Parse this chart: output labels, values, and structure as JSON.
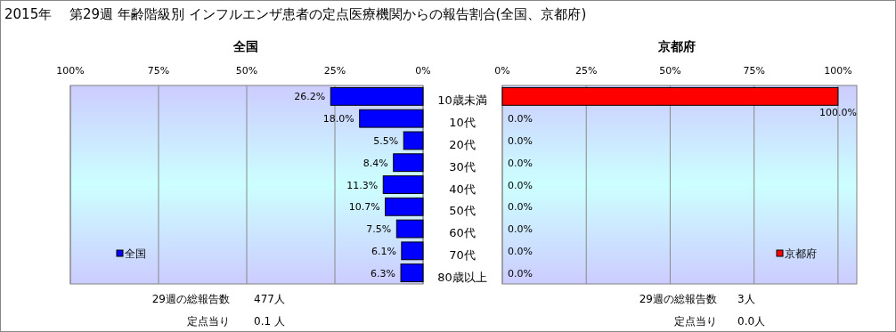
{
  "chart_data": [
    {
      "type": "bar",
      "orientation": "horizontal",
      "title": "2015年　 第29週 年齢階級別 インフルエンザ患者の定点医療機関からの報告割合(全国、京都府)",
      "subtitle": "全国",
      "categories": [
        "10歳未満",
        "10代",
        "20代",
        "30代",
        "40代",
        "50代",
        "60代",
        "70代",
        "80歳以上"
      ],
      "series": [
        {
          "name": "全国",
          "color": "#0000ff",
          "values": [
            26.2,
            18.0,
            5.5,
            8.4,
            11.3,
            10.7,
            7.5,
            6.1,
            6.3
          ],
          "value_labels": [
            "26.2%",
            "18.0%",
            "5.5%",
            "8.4%",
            "11.3%",
            "10.7%",
            "7.5%",
            "6.1%",
            "6.3%"
          ]
        }
      ],
      "xlim": [
        100,
        0
      ],
      "xticks": [
        {
          "value": 100,
          "label": "100%"
        },
        {
          "value": 75,
          "label": "75%"
        },
        {
          "value": 50,
          "label": "50%"
        },
        {
          "value": 25,
          "label": "25%"
        },
        {
          "value": 0,
          "label": "0%"
        }
      ],
      "grid": "x",
      "legend": "bottom left",
      "annotations": [
        "29週の総報告数",
        "477人",
        "定点当り",
        "0.1 人"
      ]
    },
    {
      "type": "bar",
      "orientation": "horizontal",
      "title": "京都府",
      "categories": [
        null,
        null,
        null,
        null,
        null,
        null,
        null,
        null,
        null
      ],
      "series": [
        {
          "name": "京都府",
          "color": "#ff0000",
          "values": [
            100,
            0,
            0,
            0,
            0,
            0,
            0,
            0,
            0
          ],
          "value_labels": [
            "100.0%",
            "0.0%",
            "0.0%",
            "0.0%",
            "0.0%",
            "0.0%",
            "0.0%",
            "0.0%",
            "0.0%"
          ]
        }
      ],
      "xlim": [
        0,
        105.6
      ],
      "xticks": [
        {
          "value": 0,
          "label": "0%"
        },
        {
          "value": 25,
          "label": "25%"
        },
        {
          "value": 50,
          "label": "50%"
        },
        {
          "value": 75,
          "label": "75%"
        },
        {
          "value": 100,
          "label": "100%"
        }
      ],
      "grid": "x",
      "legend": "bottom right",
      "annotations": [
        "29週の総報告数",
        "3人",
        "定点当り",
        "0.0人"
      ]
    }
  ]
}
